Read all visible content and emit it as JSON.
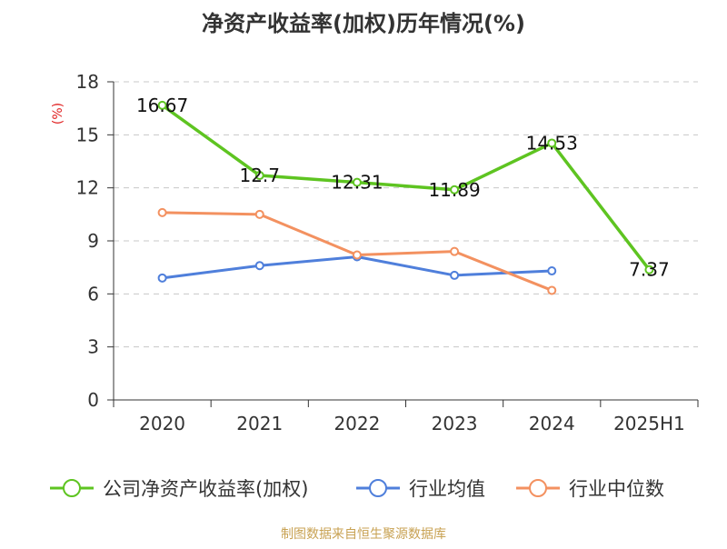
{
  "chart_data": {
    "type": "line",
    "title": "净资产收益率(加权)历年情况(%)",
    "ylabel": "(%)",
    "categories": [
      "2020",
      "2021",
      "2022",
      "2023",
      "2024",
      "2025H1"
    ],
    "yticks": [
      0,
      3,
      6,
      9,
      12,
      15,
      18
    ],
    "ylim": [
      0,
      18
    ],
    "grid": true,
    "legend_position": "bottom",
    "series": [
      {
        "name": "公司净资产收益率(加权)",
        "color": "#5ec421",
        "values": [
          16.67,
          12.7,
          12.31,
          11.89,
          14.53,
          7.37
        ],
        "labels": [
          "16.67",
          "12.7",
          "12.31",
          "11.89",
          "14.53",
          "7.37"
        ]
      },
      {
        "name": "行业均值",
        "color": "#4f7fdb",
        "values": [
          6.9,
          7.6,
          8.1,
          7.05,
          7.3,
          null
        ]
      },
      {
        "name": "行业中位数",
        "color": "#f39160",
        "values": [
          10.6,
          10.5,
          8.2,
          8.4,
          6.2,
          null
        ]
      }
    ],
    "source": "制图数据来自恒生聚源数据库",
    "source_color": "#c8a253",
    "ylabel_color": "#e02020"
  }
}
